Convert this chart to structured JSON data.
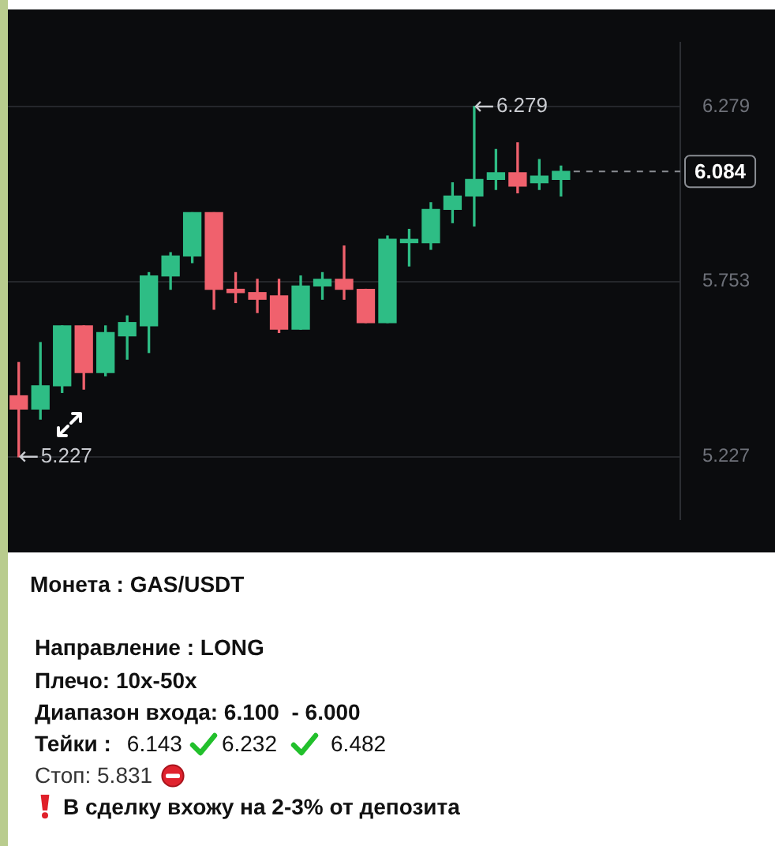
{
  "chart_data": {
    "type": "candlestick",
    "categories": [
      null,
      null,
      null,
      null,
      null,
      null,
      null,
      null,
      null,
      null,
      null,
      null,
      null,
      null,
      null,
      null,
      null,
      null,
      null,
      null,
      null,
      null,
      null,
      null,
      null,
      null,
      null,
      null,
      null,
      null,
      null
    ],
    "ohlc": [
      [
        5.41,
        5.51,
        5.227,
        5.37
      ],
      [
        5.37,
        5.57,
        5.34,
        5.44
      ],
      [
        5.44,
        5.62,
        5.42,
        5.62
      ],
      [
        5.62,
        5.62,
        5.43,
        5.48
      ],
      [
        5.48,
        5.62,
        5.47,
        5.6
      ],
      [
        5.59,
        5.65,
        5.52,
        5.63
      ],
      [
        5.62,
        5.78,
        5.54,
        5.77
      ],
      [
        5.77,
        5.84,
        5.73,
        5.83
      ],
      [
        5.83,
        5.96,
        5.81,
        5.96
      ],
      [
        5.96,
        5.96,
        5.67,
        5.73
      ],
      [
        5.73,
        5.78,
        5.69,
        5.72
      ],
      [
        5.72,
        5.76,
        5.66,
        5.7
      ],
      [
        5.71,
        5.76,
        5.6,
        5.61
      ],
      [
        5.61,
        5.77,
        5.61,
        5.74
      ],
      [
        5.74,
        5.78,
        5.7,
        5.76
      ],
      [
        5.76,
        5.86,
        5.7,
        5.73
      ],
      [
        5.73,
        5.73,
        5.63,
        5.63
      ],
      [
        5.63,
        5.89,
        5.63,
        5.88
      ],
      [
        5.87,
        5.91,
        5.8,
        5.88
      ],
      [
        5.87,
        5.99,
        5.85,
        5.97
      ],
      [
        5.97,
        6.05,
        5.93,
        6.01
      ],
      [
        6.01,
        6.279,
        5.92,
        6.06
      ],
      [
        6.06,
        6.15,
        6.03,
        6.08
      ],
      [
        6.08,
        6.17,
        6.02,
        6.04
      ],
      [
        6.05,
        6.12,
        6.03,
        6.07
      ],
      [
        6.06,
        6.1,
        6.01,
        6.084
      ],
      null,
      null,
      null,
      null,
      null
    ],
    "colors": [
      "#f0616d",
      "#2ebd85",
      "#2ebd85",
      "#f0616d",
      "#2ebd85",
      "#2ebd85",
      "#2ebd85",
      "#2ebd85",
      "#2ebd85",
      "#f0616d",
      "#f0616d",
      "#f0616d",
      "#f0616d",
      "#2ebd85",
      "#2ebd85",
      "#f0616d",
      "#f0616d",
      "#2ebd85",
      "#2ebd85",
      "#2ebd85",
      "#2ebd85",
      "#2ebd85",
      "#2ebd85",
      "#f0616d",
      "#2ebd85",
      "#2ebd85",
      null,
      null,
      null,
      null,
      null
    ],
    "ylim": [
      5.04,
      6.47
    ],
    "yticks": [
      5.227,
      5.753,
      6.279
    ],
    "grid": "y",
    "tick_labels": "y",
    "ref_lines": [
      {
        "axis": "y",
        "value": 6.084,
        "label": "6.084",
        "line_style": "dashed",
        "color": "#8a8d93"
      }
    ],
    "annotations": [
      "6.279",
      "5.227",
      "Монета : GAS/USDT",
      "Направление : LONG",
      "Плечо: 10x-50x",
      "Диапазон входа: 6.100  - 6.000",
      "Тейки :",
      "6.143",
      "6.232",
      "6.482",
      "Стоп: 5.831",
      "В сделку вхожу на 2-3% от депозита"
    ]
  }
}
